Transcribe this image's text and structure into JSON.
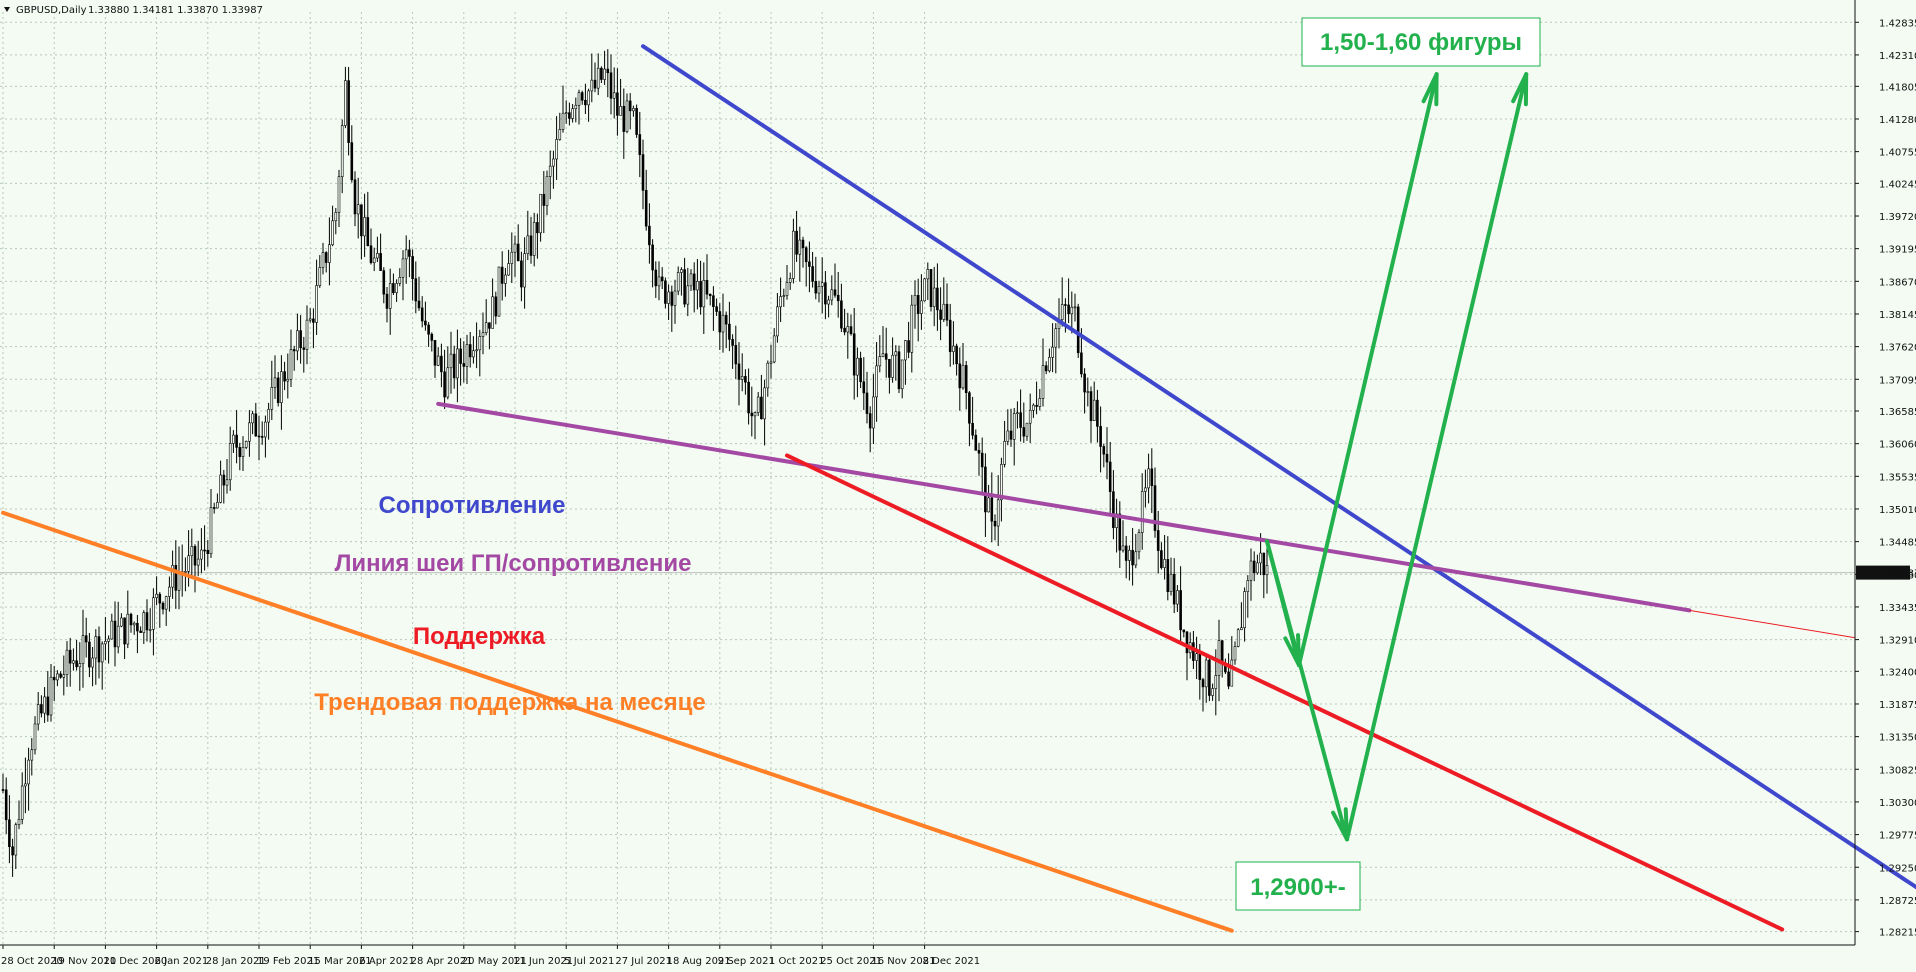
{
  "header": {
    "symbol": "GBPUSD,Daily",
    "ohlc": "1.33880 1.34181 1.33870 1.33987"
  },
  "chart_data": {
    "type": "candlestick",
    "symbol": "GBPUSD",
    "timeframe": "Daily",
    "last_price": "1.33987",
    "ylim": [
      1.28,
      1.43
    ],
    "y_ticks": [
      "1.42835",
      "1.42310",
      "1.41805",
      "1.41280",
      "1.40755",
      "1.40245",
      "1.39720",
      "1.39195",
      "1.38670",
      "1.38145",
      "1.37620",
      "1.37095",
      "1.36585",
      "1.36060",
      "1.35535",
      "1.35010",
      "1.34485",
      "1.33960",
      "1.33435",
      "1.32910",
      "1.32400",
      "1.31875",
      "1.31350",
      "1.30825",
      "1.30300",
      "1.29775",
      "1.29250",
      "1.28725",
      "1.28215"
    ],
    "x_ticks": [
      "28 Oct 2020",
      "19 Nov 2020",
      "11 Dec 2020",
      "6 Jan 2021",
      "28 Jan 2021",
      "19 Feb 2021",
      "15 Mar 2021",
      "6 Apr 2021",
      "28 Apr 2021",
      "20 May 2021",
      "11 Jun 2021",
      "5 Jul 2021",
      "27 Jul 2021",
      "18 Aug 2021",
      "9 Sep 2021",
      "1 Oct 2021",
      "25 Oct 2021",
      "16 Nov 2021",
      "8 Dec 2021"
    ],
    "path": [
      [
        0,
        1.305
      ],
      [
        3,
        1.295
      ],
      [
        8,
        1.312
      ],
      [
        16,
        1.322
      ],
      [
        22,
        1.326
      ],
      [
        35,
        1.33
      ],
      [
        45,
        1.333
      ],
      [
        55,
        1.34
      ],
      [
        62,
        1.342
      ],
      [
        72,
        1.36
      ],
      [
        82,
        1.365
      ],
      [
        88,
        1.372
      ],
      [
        96,
        1.38
      ],
      [
        104,
        1.398
      ],
      [
        107,
        1.418
      ],
      [
        110,
        1.4
      ],
      [
        114,
        1.392
      ],
      [
        120,
        1.385
      ],
      [
        126,
        1.392
      ],
      [
        132,
        1.378
      ],
      [
        138,
        1.371
      ],
      [
        143,
        1.374
      ],
      [
        147,
        1.378
      ],
      [
        153,
        1.382
      ],
      [
        158,
        1.392
      ],
      [
        162,
        1.388
      ],
      [
        167,
        1.396
      ],
      [
        171,
        1.404
      ],
      [
        176,
        1.414
      ],
      [
        180,
        1.418
      ],
      [
        184,
        1.417
      ],
      [
        188,
        1.42
      ],
      [
        192,
        1.414
      ],
      [
        197,
        1.412
      ],
      [
        201,
        1.398
      ],
      [
        205,
        1.385
      ],
      [
        210,
        1.386
      ],
      [
        218,
        1.385
      ],
      [
        225,
        1.38
      ],
      [
        231,
        1.372
      ],
      [
        235,
        1.363
      ],
      [
        239,
        1.372
      ],
      [
        243,
        1.384
      ],
      [
        247,
        1.392
      ],
      [
        252,
        1.388
      ],
      [
        257,
        1.386
      ],
      [
        262,
        1.382
      ],
      [
        266,
        1.374
      ],
      [
        271,
        1.366
      ],
      [
        275,
        1.375
      ],
      [
        280,
        1.372
      ],
      [
        285,
        1.382
      ],
      [
        289,
        1.386
      ],
      [
        293,
        1.382
      ],
      [
        297,
        1.376
      ],
      [
        301,
        1.369
      ],
      [
        305,
        1.358
      ],
      [
        309,
        1.346
      ],
      [
        313,
        1.36
      ],
      [
        317,
        1.364
      ],
      [
        321,
        1.364
      ],
      [
        325,
        1.373
      ],
      [
        328,
        1.378
      ],
      [
        332,
        1.382
      ],
      [
        335,
        1.381
      ],
      [
        339,
        1.368
      ],
      [
        343,
        1.362
      ],
      [
        347,
        1.35
      ],
      [
        351,
        1.34
      ],
      [
        355,
        1.348
      ],
      [
        358,
        1.354
      ],
      [
        362,
        1.343
      ],
      [
        365,
        1.338
      ],
      [
        369,
        1.331
      ],
      [
        373,
        1.326
      ],
      [
        377,
        1.322
      ],
      [
        380,
        1.326
      ],
      [
        383,
        1.32
      ],
      [
        386,
        1.329
      ],
      [
        389,
        1.34
      ],
      [
        393,
        1.342
      ],
      [
        395,
        1.3399
      ]
    ],
    "lines": [
      {
        "label": "Сопротивление",
        "color": "#3f48cc",
        "x1": 200,
        "y1": 1.4245,
        "x2": 612,
        "y2": 1.2845
      },
      {
        "label": "Линия шеи ГП/сопротивление",
        "color": "#a349a4",
        "x1": 136,
        "y1": 1.367,
        "x2": 527,
        "y2": 1.3338
      },
      {
        "label": "Поддержка",
        "color": "#ed1c24",
        "x1": 245,
        "y1": 1.3587,
        "x2": 556,
        "y2": 1.2825
      },
      {
        "label": "Трендовая поддержка на месяце",
        "color": "#ff7f27",
        "x1": 0,
        "y1": 1.3495,
        "x2": 384,
        "y2": 1.2823
      }
    ],
    "scenario_arrows": [
      {
        "from": [
          395,
          1.3449
        ],
        "to": [
          405,
          1.325
        ]
      },
      {
        "from": [
          405,
          1.325
        ],
        "to": [
          448,
          1.42
        ]
      },
      {
        "from": [
          395,
          1.3449
        ],
        "to": [
          420,
          1.297
        ]
      },
      {
        "from": [
          420,
          1.297
        ],
        "to": [
          476,
          1.42
        ]
      }
    ],
    "annotations": [
      "1,50-1,60 фигуры",
      "1,2900+-"
    ],
    "grid": true
  },
  "labels": {
    "resistance": "Сопротивление",
    "neckline": "Линия шеи ГП/сопротивление",
    "support": "Поддержка",
    "trend_support": "Трендовая поддержка на месяце",
    "target_up": "1,50-1,60 фигуры",
    "target_down": "1,2900+-"
  }
}
